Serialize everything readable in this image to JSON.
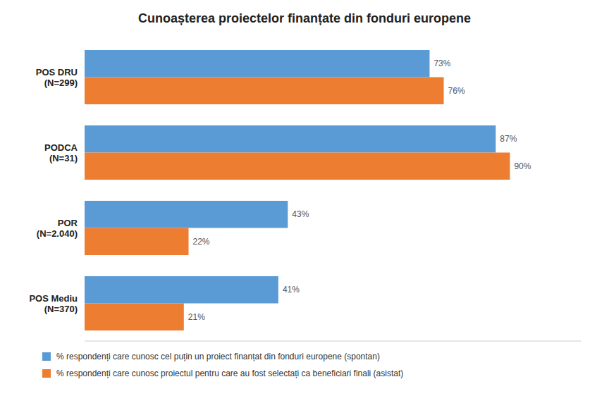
{
  "chart_data": {
    "type": "bar",
    "orientation": "horizontal",
    "title": "Cunoașterea proiectelor finanțate din fonduri europene",
    "categories": [
      "POS DRU\n(N=299)",
      "PODCA\n(N=31)",
      "POR\n(N=2.040)",
      "POS Mediu\n(N=370)"
    ],
    "series": [
      {
        "name": "% respondenți care cunosc cel puțin un proiect finanțat din fonduri europene (spontan)",
        "color": "#5B9BD5",
        "values": [
          73,
          87,
          43,
          41
        ],
        "value_labels": [
          "73%",
          "87%",
          "43%",
          "41%"
        ]
      },
      {
        "name": "% respondenți care cunosc proiectul pentru care au fost selectați ca beneficiari finali (asistat)",
        "color": "#ED7D31",
        "values": [
          76,
          90,
          22,
          21
        ],
        "value_labels": [
          "76%",
          "90%",
          "22%",
          "21%"
        ]
      }
    ],
    "xlim": [
      0,
      105
    ],
    "data_labels": true,
    "tick_labels": "y",
    "grid": false,
    "legend": "bottom"
  }
}
